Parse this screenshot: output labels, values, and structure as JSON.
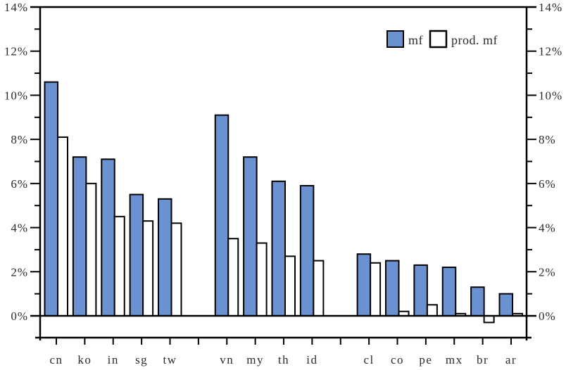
{
  "chart_data": {
    "type": "bar",
    "title": "",
    "xlabel": "",
    "ylabel": "",
    "categories": [
      "cn",
      "ko",
      "in",
      "sg",
      "tw",
      "vn",
      "my",
      "th",
      "id",
      "cl",
      "co",
      "pe",
      "mx",
      "br",
      "ar"
    ],
    "group_sizes": [
      5,
      4,
      6
    ],
    "series": [
      {
        "name": "mf",
        "color": "#6b92d0",
        "values": [
          10.6,
          7.2,
          7.1,
          5.5,
          5.3,
          9.1,
          7.2,
          6.1,
          5.9,
          2.8,
          2.5,
          2.3,
          2.2,
          1.3,
          1.0
        ]
      },
      {
        "name": "prod. mf",
        "color": "#ffffff",
        "values": [
          8.1,
          6.0,
          4.5,
          4.3,
          4.2,
          3.5,
          3.3,
          2.7,
          2.5,
          2.4,
          0.2,
          0.5,
          0.1,
          -0.3,
          0.1
        ]
      }
    ],
    "ylim": [
      0,
      14
    ],
    "y_major_step": 2,
    "y_minor_step": 1,
    "y_tick_suffix": "%",
    "y_major_tick_labels": [
      "0%",
      "2%",
      "4%",
      "6%",
      "8%",
      "10%",
      "12%",
      "14%"
    ],
    "axis_label_sides": [
      "left",
      "right"
    ],
    "grid": false,
    "legend_position": "top-right",
    "legend": {
      "entries": [
        {
          "label": "mf",
          "swatch_fill": "#6b92d0"
        },
        {
          "label": "prod. mf",
          "swatch_fill": "#ffffff"
        }
      ]
    },
    "bar_border_color": "#000000",
    "axis_color": "#000000"
  }
}
